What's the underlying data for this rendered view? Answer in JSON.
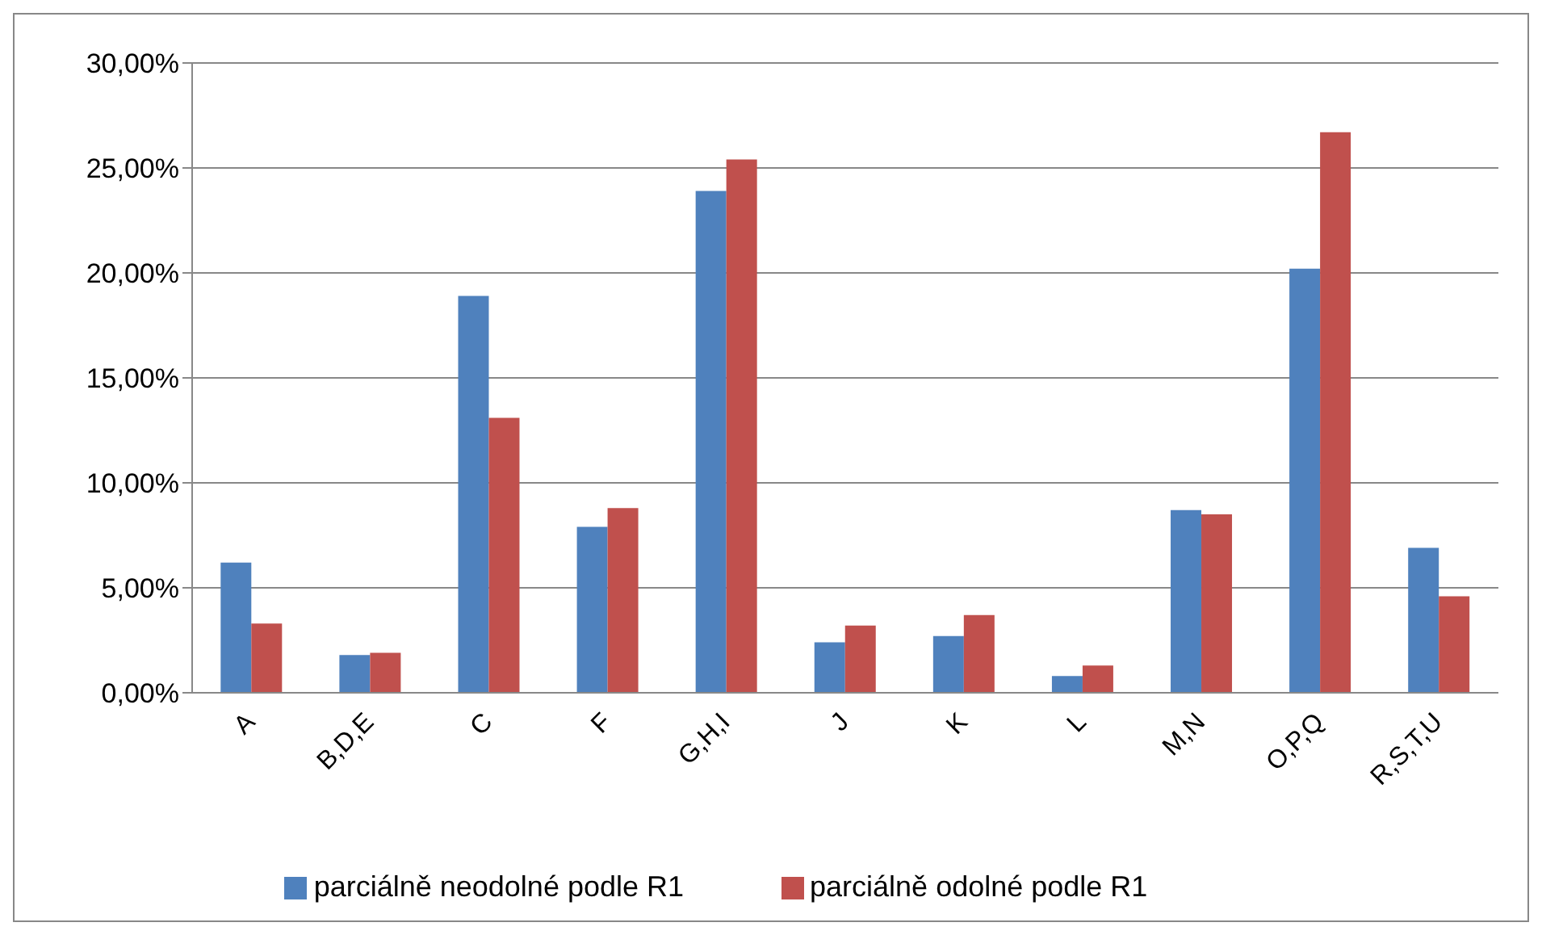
{
  "chart_data": {
    "type": "bar",
    "categories": [
      "A",
      "B,D,E",
      "C",
      "F",
      "G,H,I",
      "J",
      "K",
      "L",
      "M,N",
      "O,P,Q",
      "R,S,T,U"
    ],
    "series": [
      {
        "name": "parciálně neodolné podle R1",
        "color": "#4f81bd",
        "values": [
          6.2,
          1.8,
          18.9,
          7.9,
          23.9,
          2.4,
          2.7,
          0.8,
          8.7,
          20.2,
          6.9
        ]
      },
      {
        "name": "parciálně odolné podle R1",
        "color": "#c0504d",
        "values": [
          3.3,
          1.9,
          13.1,
          8.8,
          25.4,
          3.2,
          3.7,
          1.3,
          8.5,
          26.7,
          4.6
        ]
      }
    ],
    "ylim": [
      0,
      30
    ],
    "yticks": [
      {
        "value": 0,
        "label": "0,00%"
      },
      {
        "value": 5,
        "label": "5,00%"
      },
      {
        "value": 10,
        "label": "10,00%"
      },
      {
        "value": 15,
        "label": "15,00%"
      },
      {
        "value": 20,
        "label": "20,00%"
      },
      {
        "value": 25,
        "label": "25,00%"
      },
      {
        "value": 30,
        "label": "30,00%"
      }
    ],
    "grid": "y",
    "legend": "bottom"
  }
}
